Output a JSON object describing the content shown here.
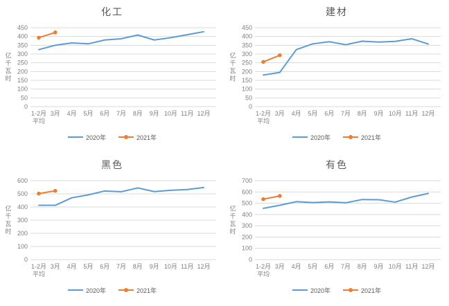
{
  "ylabel": "亿千瓦时",
  "legend": [
    "2020年",
    "2021年"
  ],
  "colors": {
    "series2020": "#5B9BD5",
    "series2021": "#ED7D31",
    "gridline": "#D9D9D9",
    "axis_text": "#808080",
    "title_text": "#595959",
    "background": "#FFFFFF"
  },
  "categories": [
    "1-2月\n平均",
    "3月",
    "4月",
    "5月",
    "6月",
    "7月",
    "8月",
    "9月",
    "10月",
    "11月",
    "12月"
  ],
  "chart_data": [
    {
      "type": "line",
      "title": "化工",
      "ylabel": "亿千瓦时",
      "xlabel": "",
      "ylim": [
        0,
        450
      ],
      "ystep": 50,
      "grid": true,
      "legend_position": "bottom",
      "categories": [
        "1-2月平均",
        "3月",
        "4月",
        "5月",
        "6月",
        "7月",
        "8月",
        "9月",
        "10月",
        "11月",
        "12月"
      ],
      "series": [
        {
          "name": "2020年",
          "color": "#5B9BD5",
          "markers": false,
          "values": [
            325,
            350,
            363,
            358,
            380,
            387,
            408,
            380,
            393,
            410,
            427
          ]
        },
        {
          "name": "2021年",
          "color": "#ED7D31",
          "markers": true,
          "values": [
            393,
            423
          ]
        }
      ]
    },
    {
      "type": "line",
      "title": "建材",
      "ylabel": "亿千瓦时",
      "xlabel": "",
      "ylim": [
        0,
        450
      ],
      "ystep": 50,
      "grid": true,
      "legend_position": "bottom",
      "categories": [
        "1-2月平均",
        "3月",
        "4月",
        "5月",
        "6月",
        "7月",
        "8月",
        "9月",
        "10月",
        "11月",
        "12月"
      ],
      "series": [
        {
          "name": "2020年",
          "color": "#5B9BD5",
          "markers": false,
          "values": [
            180,
            195,
            325,
            358,
            370,
            353,
            373,
            368,
            372,
            387,
            357
          ]
        },
        {
          "name": "2021年",
          "color": "#ED7D31",
          "markers": true,
          "values": [
            255,
            293
          ]
        }
      ]
    },
    {
      "type": "line",
      "title": "黑色",
      "ylabel": "亿千瓦时",
      "xlabel": "",
      "ylim": [
        0,
        600
      ],
      "ystep": 100,
      "grid": true,
      "legend_position": "bottom",
      "categories": [
        "1-2月平均",
        "3月",
        "4月",
        "5月",
        "6月",
        "7月",
        "8月",
        "9月",
        "10月",
        "11月",
        "12月"
      ],
      "series": [
        {
          "name": "2020年",
          "color": "#5B9BD5",
          "markers": false,
          "values": [
            413,
            413,
            470,
            492,
            522,
            516,
            545,
            517,
            527,
            533,
            548
          ]
        },
        {
          "name": "2021年",
          "color": "#ED7D31",
          "markers": true,
          "values": [
            502,
            523
          ]
        }
      ]
    },
    {
      "type": "line",
      "title": "有色",
      "ylabel": "亿千瓦时",
      "xlabel": "",
      "ylim": [
        0,
        700
      ],
      "ystep": 100,
      "grid": true,
      "legend_position": "bottom",
      "categories": [
        "1-2月平均",
        "3月",
        "4月",
        "5月",
        "6月",
        "7月",
        "8月",
        "9月",
        "10月",
        "11月",
        "12月"
      ],
      "series": [
        {
          "name": "2020年",
          "color": "#5B9BD5",
          "markers": false,
          "values": [
            455,
            482,
            514,
            506,
            512,
            504,
            533,
            531,
            510,
            555,
            587
          ]
        },
        {
          "name": "2021年",
          "color": "#ED7D31",
          "markers": true,
          "values": [
            536,
            565
          ]
        }
      ]
    }
  ]
}
